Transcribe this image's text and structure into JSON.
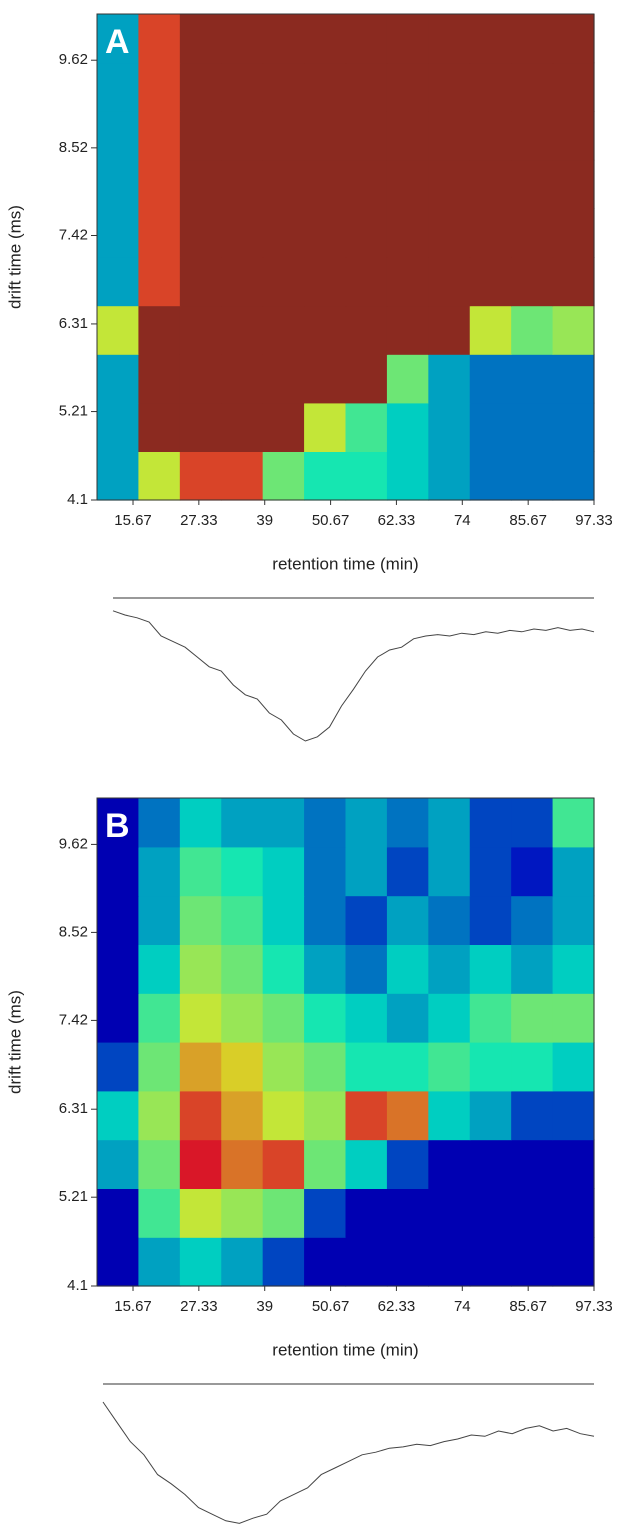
{
  "chart_data": [
    {
      "type": "heatmap",
      "panel": "A",
      "x_label": "retention time (min)",
      "y_label": "drift time (ms)",
      "xlim": [
        9.29,
        97.33
      ],
      "ylim": [
        4.1,
        10.2
      ],
      "xticks": [
        15.67,
        27.33,
        39,
        50.67,
        62.33,
        74,
        85.67,
        97.33
      ],
      "yticks": [
        4.1,
        5.21,
        6.31,
        7.42,
        8.52,
        9.62
      ],
      "zlim": [
        0,
        1
      ],
      "z": [
        [
          0.3,
          0.6,
          0.8,
          0.8,
          0.5,
          0.4,
          0.4,
          0.35,
          0.3,
          0.25,
          0.25,
          0.25
        ],
        [
          0.3,
          1,
          1,
          1,
          1,
          0.6,
          0.45,
          0.35,
          0.3,
          0.25,
          0.25,
          0.25
        ],
        [
          0.3,
          1,
          1,
          1,
          1,
          1,
          1,
          0.5,
          0.3,
          0.25,
          0.25,
          0.25
        ],
        [
          0.6,
          1,
          1,
          1,
          1,
          1,
          1,
          1,
          1,
          0.6,
          0.5,
          0.55
        ],
        [
          0.3,
          0.8,
          1,
          1,
          1,
          1,
          1,
          1,
          1,
          1,
          1,
          1
        ],
        [
          0.3,
          0.8,
          1,
          1,
          1,
          1,
          1,
          1,
          1,
          1,
          1,
          1
        ],
        [
          0.3,
          0.8,
          1,
          1,
          1,
          1,
          1,
          1,
          1,
          1,
          1,
          1
        ],
        [
          0.3,
          0.8,
          1,
          1,
          1,
          1,
          1,
          1,
          1,
          1,
          1,
          1
        ],
        [
          0.3,
          0.8,
          1,
          1,
          1,
          1,
          1,
          1,
          1,
          1,
          1,
          1
        ],
        [
          0.3,
          0.8,
          1,
          1,
          1,
          1,
          1,
          1,
          1,
          1,
          1,
          1
        ]
      ]
    },
    {
      "type": "line",
      "ylim": [
        0,
        100
      ],
      "color": "#444444",
      "values": [
        98,
        95,
        93,
        90,
        80,
        76,
        72,
        65,
        58,
        55,
        45,
        38,
        35,
        25,
        20,
        10,
        5,
        8,
        15,
        30,
        42,
        55,
        65,
        70,
        72,
        78,
        80,
        81,
        80,
        82,
        81,
        83,
        82,
        84,
        83,
        85,
        84,
        86,
        84,
        85,
        83
      ]
    },
    {
      "type": "heatmap",
      "panel": "B",
      "x_label": "retention time (min)",
      "y_label": "drift time (ms)",
      "xlim": [
        9.29,
        97.33
      ],
      "ylim": [
        4.1,
        10.2
      ],
      "xticks": [
        15.67,
        27.33,
        39,
        50.67,
        62.33,
        74,
        85.67,
        97.33
      ],
      "yticks": [
        4.1,
        5.21,
        6.31,
        7.42,
        8.52,
        9.62
      ],
      "zlim": [
        0,
        1
      ],
      "z": [
        [
          0.1,
          0.3,
          0.35,
          0.3,
          0.2,
          0.1,
          0.1,
          0.1,
          0.1,
          0.1,
          0.1,
          0.1
        ],
        [
          0.1,
          0.45,
          0.6,
          0.55,
          0.5,
          0.2,
          0.1,
          0.1,
          0.1,
          0.1,
          0.1,
          0.1
        ],
        [
          0.3,
          0.5,
          0.85,
          0.75,
          0.8,
          0.5,
          0.35,
          0.2,
          0.1,
          0.1,
          0.1,
          0.1
        ],
        [
          0.35,
          0.55,
          0.8,
          0.7,
          0.6,
          0.55,
          0.8,
          0.75,
          0.35,
          0.3,
          0.2,
          0.2
        ],
        [
          0.2,
          0.5,
          0.7,
          0.65,
          0.55,
          0.5,
          0.4,
          0.4,
          0.45,
          0.4,
          0.4,
          0.35
        ],
        [
          0.1,
          0.45,
          0.6,
          0.55,
          0.5,
          0.4,
          0.35,
          0.3,
          0.35,
          0.45,
          0.5,
          0.5
        ],
        [
          0.1,
          0.35,
          0.55,
          0.5,
          0.4,
          0.3,
          0.25,
          0.35,
          0.3,
          0.35,
          0.3,
          0.35
        ],
        [
          0.1,
          0.3,
          0.5,
          0.45,
          0.35,
          0.25,
          0.2,
          0.3,
          0.25,
          0.2,
          0.25,
          0.3
        ],
        [
          0.1,
          0.3,
          0.45,
          0.4,
          0.35,
          0.25,
          0.3,
          0.2,
          0.3,
          0.2,
          0.15,
          0.3
        ],
        [
          0.1,
          0.25,
          0.35,
          0.3,
          0.3,
          0.25,
          0.3,
          0.25,
          0.3,
          0.2,
          0.2,
          0.45
        ]
      ]
    },
    {
      "type": "line",
      "ylim": [
        0,
        100
      ],
      "color": "#444444",
      "values": [
        100,
        85,
        70,
        60,
        45,
        38,
        30,
        20,
        15,
        10,
        8,
        12,
        15,
        25,
        30,
        35,
        45,
        50,
        55,
        60,
        62,
        65,
        66,
        68,
        67,
        70,
        72,
        75,
        74,
        78,
        76,
        80,
        82,
        78,
        80,
        76,
        74
      ]
    }
  ]
}
